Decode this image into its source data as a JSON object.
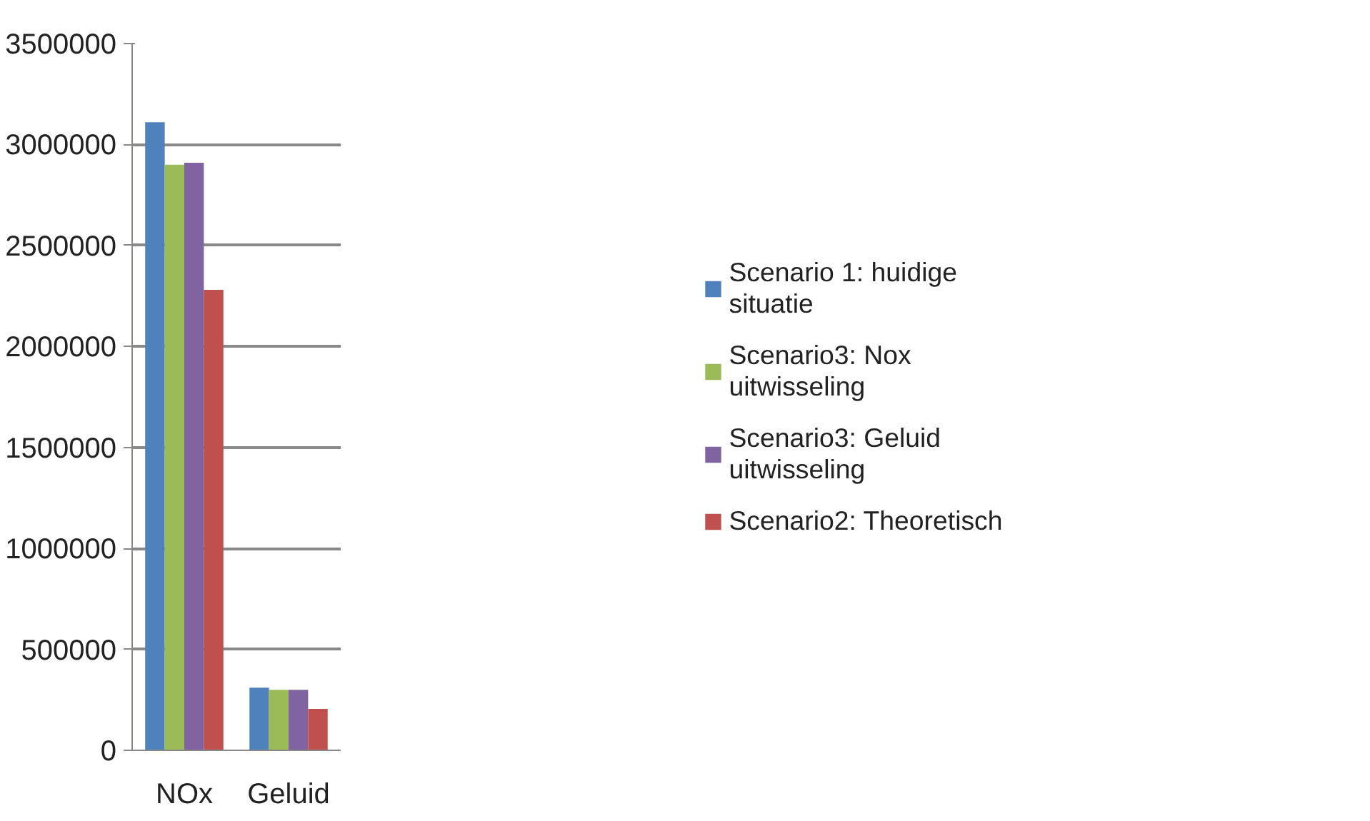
{
  "chart_data": {
    "type": "bar",
    "categories": [
      "NOx",
      "Geluid"
    ],
    "series": [
      {
        "name": "Scenario 1: huidige situatie",
        "color": "#4f81bd",
        "values": [
          3110000,
          310000
        ]
      },
      {
        "name": "Scenario3: Nox uitwisseling",
        "color": "#9bbb59",
        "values": [
          2900000,
          300000
        ]
      },
      {
        "name": "Scenario3: Geluid uitwisseling",
        "color": "#8064a2",
        "values": [
          2910000,
          300000
        ]
      },
      {
        "name": "Scenario2: Theoretisch",
        "color": "#c0504d",
        "values": [
          2280000,
          205000
        ]
      }
    ],
    "ylim": [
      0,
      3500000
    ],
    "yticks": [
      0,
      500000,
      1000000,
      1500000,
      2000000,
      2500000,
      3000000,
      3500000
    ],
    "grid": "y",
    "legend": "right"
  }
}
